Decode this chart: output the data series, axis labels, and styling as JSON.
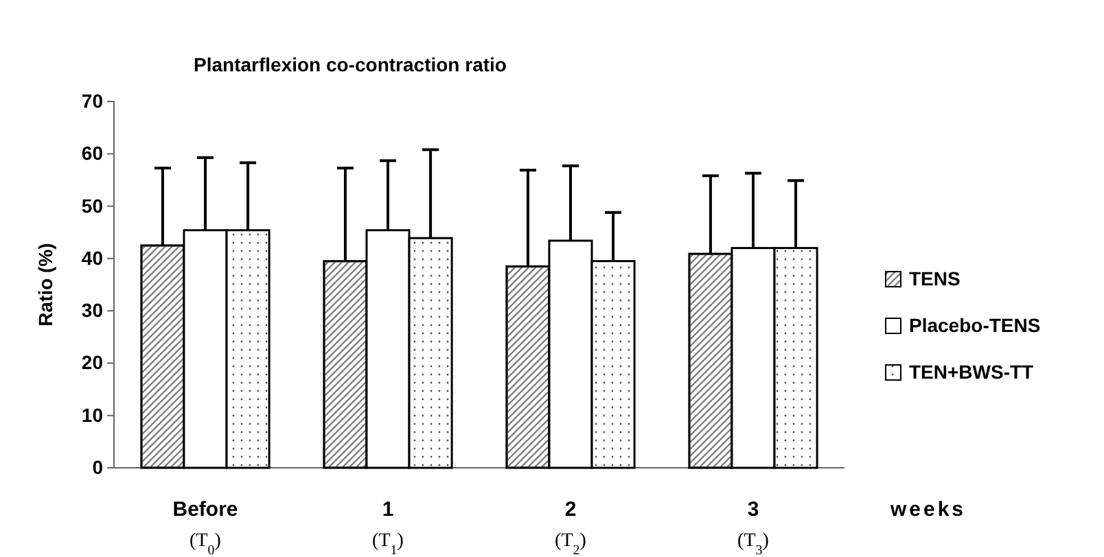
{
  "chart_data": {
    "type": "bar",
    "title": "Plantarflexion co-contraction ratio",
    "xlabel": "weeks",
    "ylabel": "Ratio (%)",
    "categories": [
      "Before (T$_{0}$)",
      "1 (T$_{1}$)",
      "2 (T$_{2}$)",
      "3 (T$_{3}$)"
    ],
    "ylim": [
      0,
      70
    ],
    "yticks": [
      0,
      10,
      20,
      30,
      40,
      50,
      60,
      70
    ],
    "grid": false,
    "legend": "right",
    "series": [
      {
        "name": "TENS",
        "color": "#808080",
        "values": [
          42.5,
          39.5,
          38.5,
          40.9
        ],
        "errors": [
          [
            42.5,
            57.3
          ],
          [
            39.5,
            57.3
          ],
          [
            38.5,
            56.9
          ],
          [
            40.9,
            55.8
          ]
        ]
      },
      {
        "name": "Placebo-TENS",
        "color": "#ffffff",
        "values": [
          45.4,
          45.4,
          43.4,
          42.0
        ],
        "errors": [
          [
            45.4,
            59.3
          ],
          [
            45.4,
            58.7
          ],
          [
            43.4,
            57.7
          ],
          [
            42.0,
            56.3
          ]
        ]
      },
      {
        "name": "TEN+BWS-TT",
        "color": "#ffffff",
        "values": [
          45.4,
          43.9,
          39.5,
          42.0
        ],
        "errors": [
          [
            45.4,
            58.3
          ],
          [
            43.9,
            60.8
          ],
          [
            39.5,
            48.8
          ],
          [
            42.0,
            54.9
          ]
        ]
      }
    ]
  }
}
